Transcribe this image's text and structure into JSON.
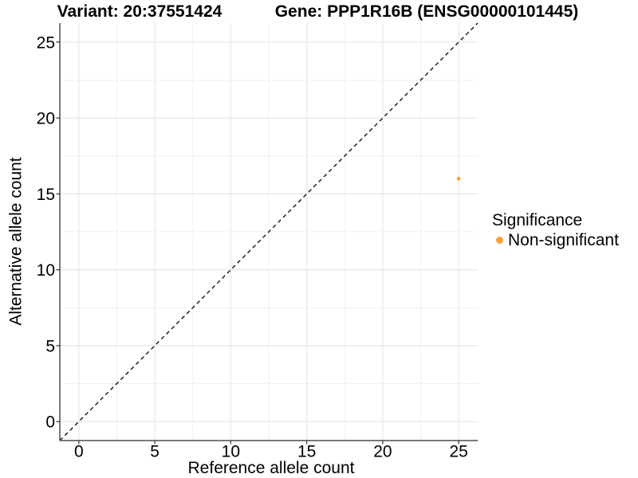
{
  "figure": {
    "titles": {
      "left": "Variant: 20:37551424",
      "right": "Gene: PPP1R16B (ENSG00000101445)"
    }
  },
  "axes": {
    "x": {
      "label": "Reference allele count"
    },
    "y": {
      "label": "Alternative allele count"
    }
  },
  "legend": {
    "title": "Significance",
    "items": [
      {
        "label": "Non-significant",
        "color": "#F9A23C"
      }
    ]
  },
  "chart_data": {
    "type": "scatter",
    "title_left": "Variant: 20:37551424",
    "title_right": "Gene: PPP1R16B (ENSG00000101445)",
    "xlabel": "Reference allele count",
    "ylabel": "Alternative allele count",
    "series": [
      {
        "name": "Non-significant",
        "color": "#F9A23C",
        "points": [
          {
            "x": 25,
            "y": 16
          }
        ]
      }
    ],
    "reference_line": {
      "kind": "identity y=x diagonal",
      "style": "dashed",
      "color": "#000000"
    },
    "xlim": [
      -1.25,
      26.25
    ],
    "ylim": [
      -1.25,
      26.25
    ],
    "x_ticks": [
      0,
      5,
      10,
      15,
      20,
      25
    ],
    "y_ticks": [
      0,
      5,
      10,
      15,
      20,
      25
    ],
    "x_minor_gridlines": [
      2.5,
      7.5,
      12.5,
      17.5,
      22.5
    ],
    "y_minor_gridlines": [
      2.5,
      7.5,
      12.5,
      17.5,
      22.5
    ],
    "grid": "major and minor light-gray gridlines on white panel",
    "legend_position": "right, vertically centered"
  },
  "colors": {
    "background": "#FFFFFF",
    "grid_major": "#E6E6E6",
    "grid_minor": "#F1F1F1",
    "axis_line": "#4D4D4D",
    "tick_mark": "#333333",
    "text": "#000000",
    "point_orange": "#F9A23C",
    "reference_line": "#000000"
  }
}
